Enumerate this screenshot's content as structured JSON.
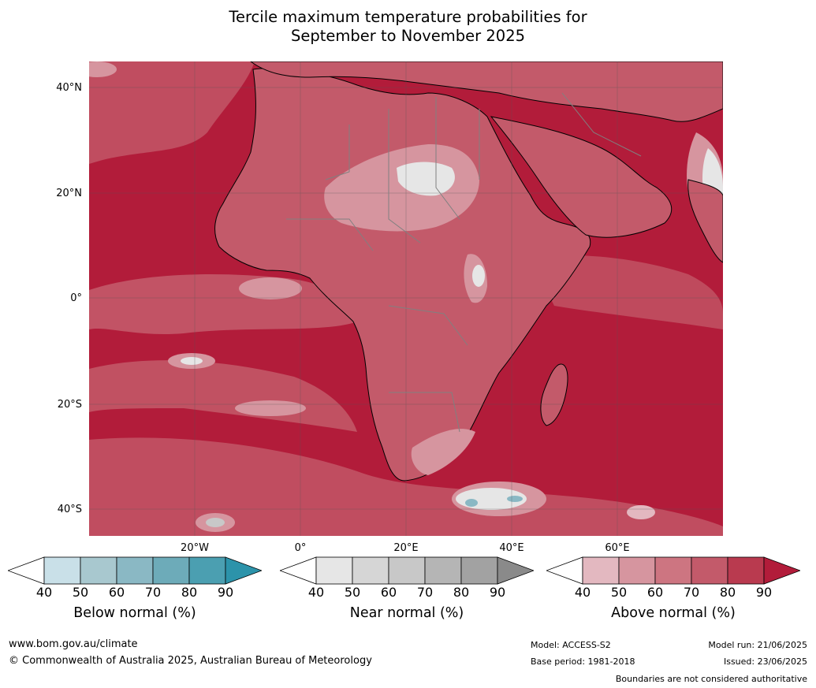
{
  "title_line1": "Tercile maximum temperature probabilities for",
  "title_line2": "September to November 2025",
  "lat_labels": [
    "40°N",
    "20°N",
    "0°",
    "20°S",
    "40°S"
  ],
  "lon_labels": [
    "20°W",
    "0°",
    "20°E",
    "40°E",
    "60°E"
  ],
  "colorbars": [
    {
      "label": "Below normal (%)",
      "ticks": [
        "40",
        "50",
        "60",
        "70",
        "80",
        "90"
      ],
      "colors": [
        "#ffffff",
        "#c9e0e8",
        "#a8c8cf",
        "#8ab8c4",
        "#6dabb9",
        "#4b9fb1",
        "#2c93aa"
      ]
    },
    {
      "label": "Near normal (%)",
      "ticks": [
        "40",
        "50",
        "60",
        "70",
        "80",
        "90"
      ],
      "colors": [
        "#ffffff",
        "#e6e6e6",
        "#d6d6d6",
        "#c8c8c8",
        "#b5b5b5",
        "#a2a2a2",
        "#8a8a8a"
      ]
    },
    {
      "label": "Above normal (%)",
      "ticks": [
        "40",
        "50",
        "60",
        "70",
        "80",
        "90"
      ],
      "colors": [
        "#ffffff",
        "#e3b8c0",
        "#d6959f",
        "#cd7581",
        "#c35a6a",
        "#b93a4f",
        "#b21c3a"
      ]
    }
  ],
  "footer": {
    "url": "www.bom.gov.au/climate",
    "copyright": "© Commonwealth of Australia 2025, Australian Bureau of Meteorology",
    "model": "Model: ACCESS-S2",
    "base_period": "Base period: 1981-2018",
    "model_run": "Model run: 21/06/2025",
    "issued": "Issued: 23/06/2025",
    "disclaimer": "Boundaries are not considered authoritative"
  },
  "colors": {
    "ocean_dominant": "#b21c3a",
    "land_medium": "#c35a6a",
    "land_light": "#d6959f",
    "coast": "#000000",
    "border": "#808080"
  }
}
